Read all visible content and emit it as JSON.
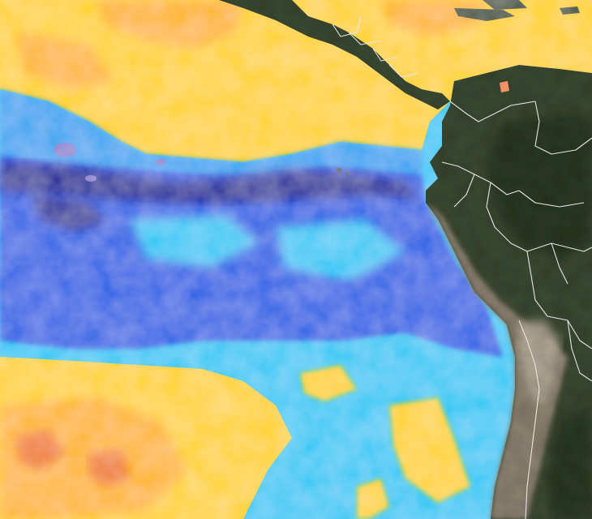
{
  "map": {
    "view": "sea-surface-temperature-anomaly",
    "region": "eastern-equatorial-pacific",
    "palette": {
      "deep_cold": "#0b1f9a",
      "cold": "#1f5fe6",
      "cool": "#2fa3f2",
      "mild_cool": "#28c8f5",
      "neutral_warm": "#ffd21a",
      "warm": "#ffb416",
      "hot": "#f07a1a",
      "anomaly_purple": "#8a7fd0",
      "land": "#3e4b34",
      "land_dark": "#2f3b28",
      "desert": "#8f8472",
      "andes": "#b6ab99",
      "borders": "#e6e6e6"
    },
    "icons": [
      "country-border-lines",
      "island-marker"
    ]
  }
}
